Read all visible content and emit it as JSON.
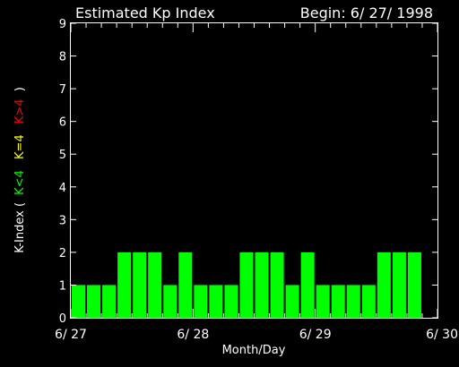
{
  "chart_data": {
    "type": "bar",
    "title": "Estimated Kp Index",
    "begin_label": "Begin: 6/ 27/ 1998",
    "xlabel": "Month/Day",
    "ylabel": {
      "prefix": "K-Index (",
      "parts": [
        {
          "text": "K<4",
          "color": "#00ff00"
        },
        {
          "text": "K=4",
          "color": "#ffff00"
        },
        {
          "text": "K>4",
          "color": "#ff0000"
        }
      ],
      "suffix": ")"
    },
    "x_ticks": [
      "6/ 27",
      "6/ 28",
      "6/ 29",
      "6/ 30"
    ],
    "y_ticks": [
      "0",
      "1",
      "2",
      "3",
      "4",
      "5",
      "6",
      "7",
      "8",
      "9"
    ],
    "ylim": [
      0,
      9
    ],
    "bars_per_day": 8,
    "days": 3,
    "values": [
      1,
      1,
      1,
      2,
      2,
      2,
      1,
      2,
      1,
      1,
      1,
      2,
      2,
      2,
      1,
      2,
      1,
      1,
      1,
      1,
      2,
      2,
      2
    ],
    "colors": {
      "below4": "#00ff00",
      "equal4": "#ffff00",
      "above4": "#ff0000",
      "axes": "#ffffff",
      "background": "#000000"
    },
    "grid": false,
    "legend": "none"
  }
}
